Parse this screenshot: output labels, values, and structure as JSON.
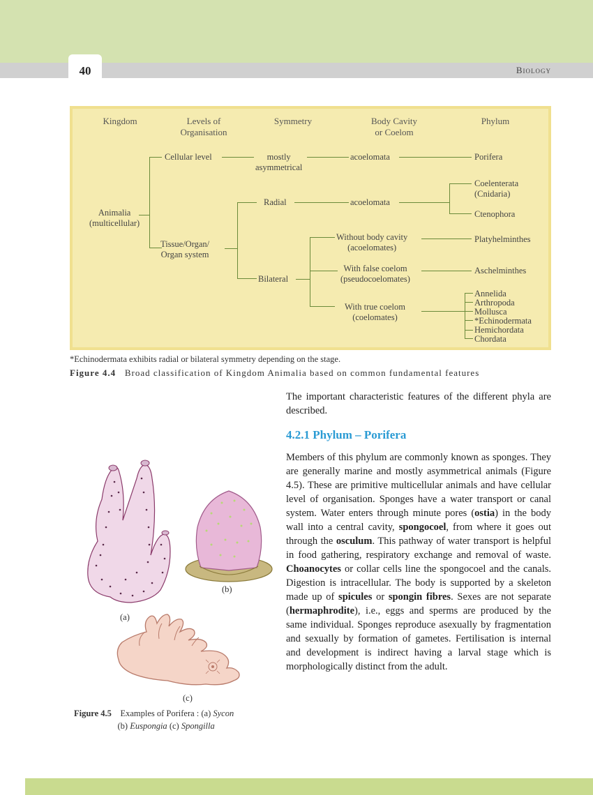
{
  "header": {
    "subject": "Biology",
    "page_number": "40"
  },
  "diagram": {
    "headers": {
      "h1": "Kingdom",
      "h2": "Levels of\nOrganisation",
      "h3": "Symmetry",
      "h4": "Body Cavity\nor Coelom",
      "h5": "Phylum"
    },
    "nodes": {
      "kingdom": "Animalia\n(multicellular)",
      "cellular": "Cellular level",
      "tissue": "Tissue/Organ/\nOrgan system",
      "mostly_asym": "mostly\nasymmetrical",
      "radial": "Radial",
      "bilateral": "Bilateral",
      "acoel1": "acoelomata",
      "acoel2": "acoelomata",
      "without": "Without body cavity\n(acoelomates)",
      "withfalse": "With false coelom\n(pseudocoelomates)",
      "withtrue": "With true coelom\n(coelomates)",
      "porifera": "Porifera",
      "coelenterata": "Coelenterata\n(Cnidaria)",
      "ctenophora": "Ctenophora",
      "platy": "Platyhelminthes",
      "aschel": "Aschelminthes",
      "annelida": "Annelida",
      "arthropoda": "Arthropoda",
      "mollusca": "Mollusca",
      "echino": "*Echinodermata",
      "hemi": "Hemichordata",
      "chordata": "Chordata"
    },
    "footnote": "*Echinodermata exhibits radial or bilateral symmetry depending on the stage.",
    "caption_bold": "Figure  4.4",
    "caption_rest": "Broad  classification  of  Kingdom  Animalia  based  on  common  fundamental  features"
  },
  "intro": "The important characteristic features of the different phyla are described.",
  "section": {
    "heading": "4.2.1  Phylum – Porifera"
  },
  "body_html": "Members of this phylum are commonly known as sponges. They are generally marine and mostly asymmetrical animals (Figure 4.5). These are primitive multicellular animals and have cellular level of organisation. Sponges have a water transport or canal system. Water enters through minute pores (<span class='b'>ostia</span>) in the body wall into a central cavity, <span class='b'>spongocoel</span>, from where it goes out through the <span class='b'>osculum</span>. This pathway of water transport is helpful in food gathering, respiratory exchange and removal of waste. <span class='b'>Choanocytes</span> or collar cells line the spongocoel and the canals. Digestion is intracellular. The body is supported by a skeleton made up of <span class='b'>spicules</span> or <span class='b'>spongin fibres</span>. Sexes are not separate (<span class='b'>hermaphrodite</span>), i.e., eggs and sperms are produced by the same individual. Sponges reproduce asexually by fragmentation and sexually by formation of gametes. Fertilisation is internal and development is indirect having a larval stage which is morphologically distinct from the adult.",
  "illus": {
    "a": "(a)",
    "b": "(b)",
    "c": "(c)",
    "caption_bold": "Figure  4.5",
    "caption_rest": "Examples of Porifera : (a) ",
    "sycon": "Sycon",
    "line2_b": "(b) ",
    "eus": "Euspongia",
    "line2_c": "  (c) ",
    "spo": "Spongilla"
  },
  "colors": {
    "diagram_bg": "#f5ebb0",
    "diagram_border": "#f0e08f",
    "line": "#6a8a3a",
    "heading": "#2b9bd4",
    "sponge_a": "#e8c5d8",
    "sponge_b": "#d8a8c8",
    "sponge_c": "#e8b5c5"
  }
}
